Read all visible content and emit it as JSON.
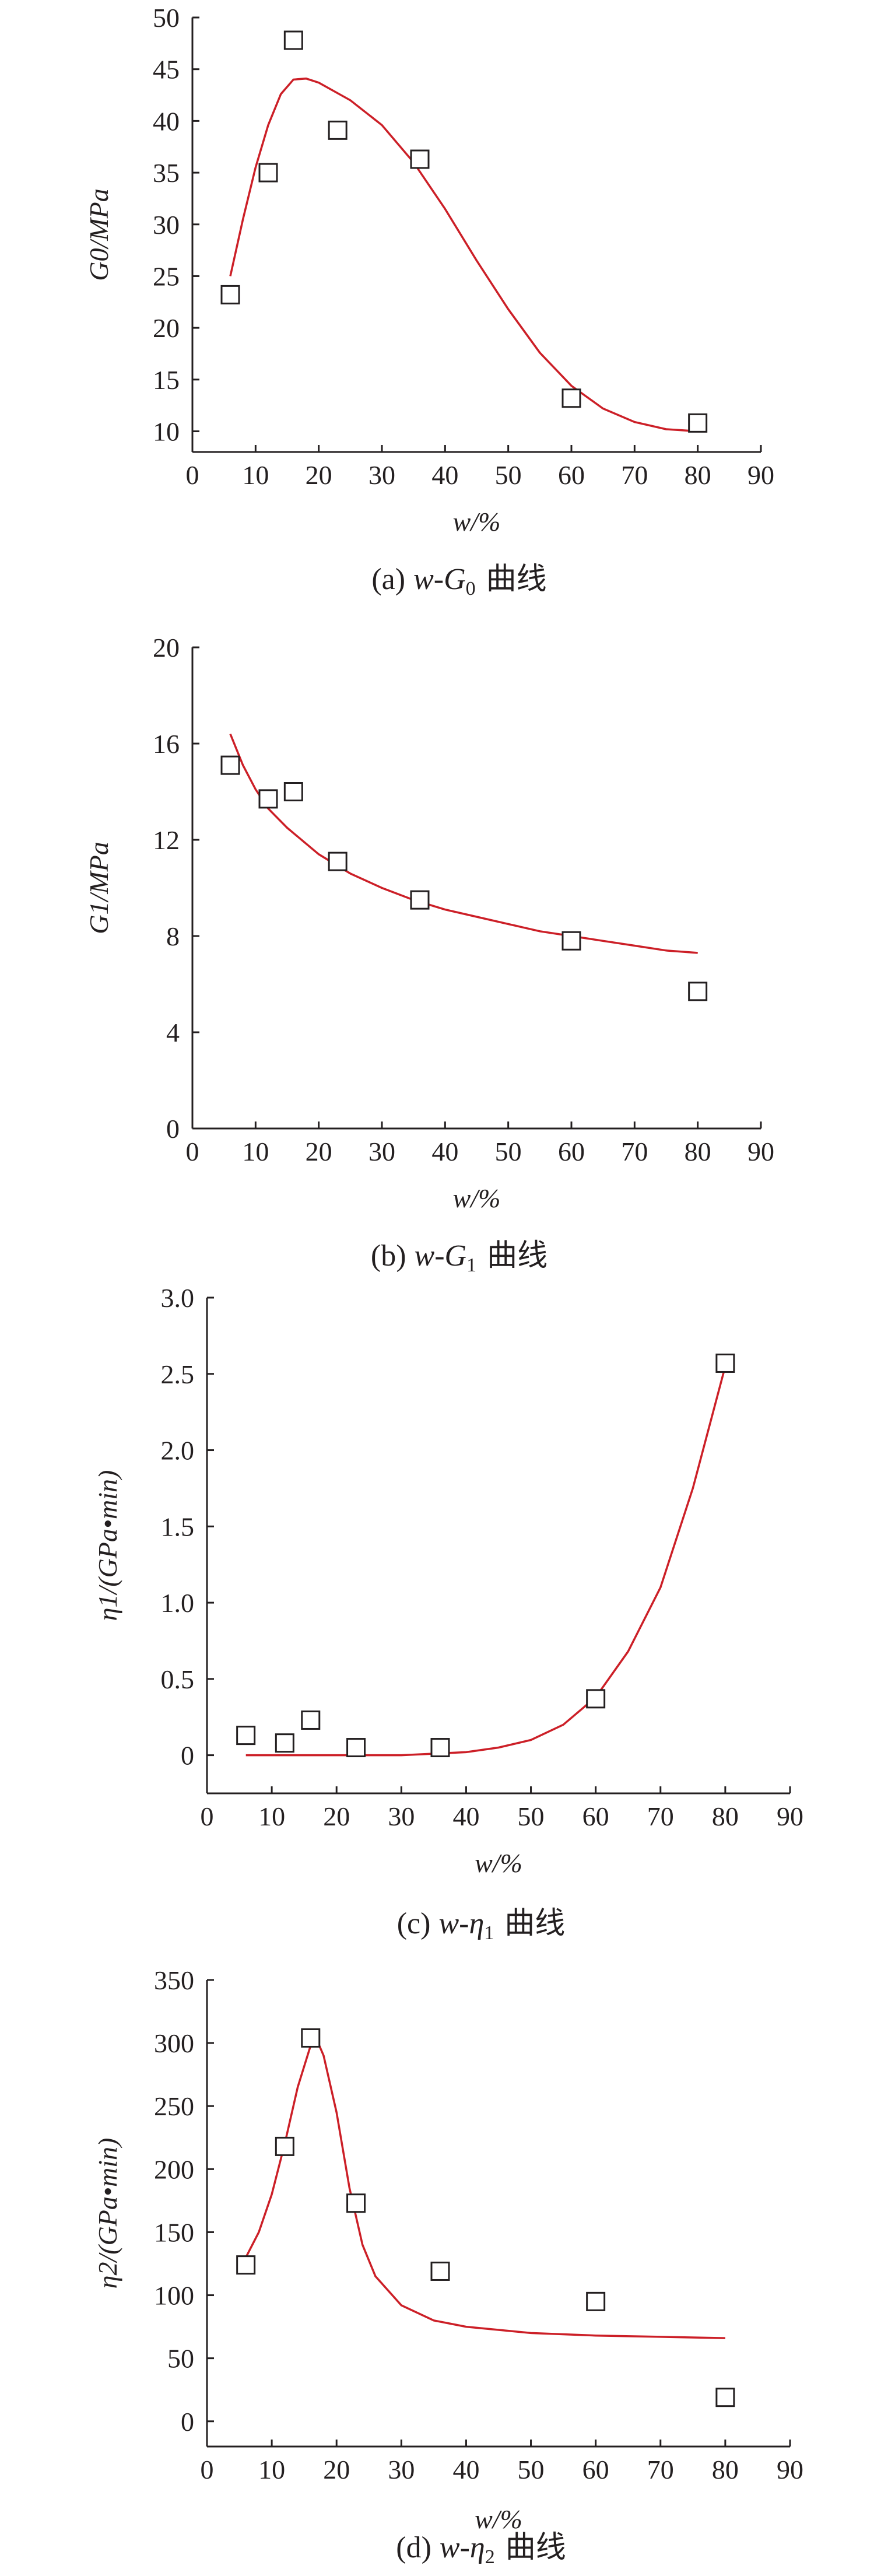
{
  "chart_data": [
    {
      "type": "scatter",
      "caption": "(a) w-G0 曲线",
      "caption_prefix": "(a)",
      "caption_var": "w-G",
      "caption_sub": "0",
      "caption_suffix": "曲线",
      "xlabel": "w/%",
      "ylabel": "G0/MPa",
      "xlim": [
        0,
        90
      ],
      "ylim": [
        8,
        50
      ],
      "xticks": [
        0,
        10,
        20,
        30,
        40,
        50,
        60,
        70,
        80,
        90
      ],
      "yticks": [
        10,
        15,
        20,
        25,
        30,
        35,
        40,
        45,
        50
      ],
      "points": [
        [
          6,
          23.2
        ],
        [
          12,
          35
        ],
        [
          16,
          47.8
        ],
        [
          23,
          39.1
        ],
        [
          36,
          36.3
        ],
        [
          60,
          13.2
        ],
        [
          80,
          10.8
        ]
      ],
      "fit_curve": [
        [
          6,
          25
        ],
        [
          8,
          30.5
        ],
        [
          10,
          35.5
        ],
        [
          12,
          39.6
        ],
        [
          14,
          42.6
        ],
        [
          16,
          44
        ],
        [
          18,
          44.1
        ],
        [
          20,
          43.7
        ],
        [
          25,
          42
        ],
        [
          30,
          39.6
        ],
        [
          35,
          36
        ],
        [
          40,
          31.5
        ],
        [
          45,
          26.5
        ],
        [
          50,
          21.8
        ],
        [
          55,
          17.6
        ],
        [
          60,
          14.4
        ],
        [
          65,
          12.2
        ],
        [
          70,
          10.9
        ],
        [
          75,
          10.2
        ],
        [
          80,
          10
        ]
      ]
    },
    {
      "type": "scatter",
      "caption": "(b) w-G1 曲线",
      "caption_prefix": "(b)",
      "caption_var": "w-G",
      "caption_sub": "1",
      "caption_suffix": "曲线",
      "xlabel": "w/%",
      "ylabel": "G1/MPa",
      "xlim": [
        0,
        90
      ],
      "ylim": [
        0,
        20
      ],
      "xticks": [
        0,
        10,
        20,
        30,
        40,
        50,
        60,
        70,
        80,
        90
      ],
      "yticks": [
        0,
        4,
        8,
        12,
        16,
        20
      ],
      "points": [
        [
          6,
          15.1
        ],
        [
          12,
          13.7
        ],
        [
          16,
          14
        ],
        [
          23,
          11.1
        ],
        [
          36,
          9.5
        ],
        [
          60,
          7.8
        ],
        [
          80,
          5.7
        ]
      ],
      "fit_curve": [
        [
          6,
          16.4
        ],
        [
          8,
          15.1
        ],
        [
          10,
          14.1
        ],
        [
          12,
          13.3
        ],
        [
          15,
          12.5
        ],
        [
          20,
          11.4
        ],
        [
          25,
          10.6
        ],
        [
          30,
          10
        ],
        [
          35,
          9.5
        ],
        [
          40,
          9.1
        ],
        [
          45,
          8.8
        ],
        [
          50,
          8.5
        ],
        [
          55,
          8.2
        ],
        [
          60,
          8
        ],
        [
          65,
          7.8
        ],
        [
          70,
          7.6
        ],
        [
          75,
          7.4
        ],
        [
          80,
          7.3
        ]
      ]
    },
    {
      "type": "scatter",
      "caption": "(c) w-η1 曲线",
      "caption_prefix": "(c)",
      "caption_var": "w-η",
      "caption_sub": "1",
      "caption_suffix": "曲线",
      "xlabel": "w/%",
      "ylabel": "η1/(GPa•min)",
      "xlim": [
        0,
        90
      ],
      "ylim": [
        -0.25,
        3.0
      ],
      "xticks": [
        0,
        10,
        20,
        30,
        40,
        50,
        60,
        70,
        80,
        90
      ],
      "yticks": [
        0,
        0.5,
        1.0,
        1.5,
        2.0,
        2.5,
        3.0
      ],
      "ytick_labels": [
        "0",
        "0.5",
        "1.0",
        "1.5",
        "2.0",
        "2.5",
        "3.0"
      ],
      "points": [
        [
          6,
          0.13
        ],
        [
          12,
          0.08
        ],
        [
          16,
          0.23
        ],
        [
          23,
          0.05
        ],
        [
          36,
          0.05
        ],
        [
          60,
          0.37
        ],
        [
          80,
          2.57
        ]
      ],
      "fit_curve": [
        [
          6,
          0
        ],
        [
          20,
          0
        ],
        [
          30,
          0
        ],
        [
          35,
          0.01
        ],
        [
          40,
          0.02
        ],
        [
          45,
          0.05
        ],
        [
          50,
          0.1
        ],
        [
          55,
          0.2
        ],
        [
          60,
          0.38
        ],
        [
          65,
          0.68
        ],
        [
          70,
          1.1
        ],
        [
          75,
          1.75
        ],
        [
          80,
          2.55
        ]
      ]
    },
    {
      "type": "scatter",
      "caption": "(d) w-η2 曲线",
      "caption_prefix": "(d)",
      "caption_var": "w-η",
      "caption_sub": "2",
      "caption_suffix": "曲线",
      "xlabel": "w/%",
      "ylabel": "η2/(GPa•min)",
      "xlim": [
        0,
        90
      ],
      "ylim": [
        -20,
        350
      ],
      "xticks": [
        0,
        10,
        20,
        30,
        40,
        50,
        60,
        70,
        80,
        90
      ],
      "yticks": [
        0,
        50,
        100,
        150,
        200,
        250,
        300,
        350
      ],
      "points": [
        [
          6,
          124
        ],
        [
          12,
          218
        ],
        [
          16,
          304
        ],
        [
          23,
          173
        ],
        [
          36,
          119
        ],
        [
          60,
          95
        ],
        [
          80,
          19
        ]
      ],
      "fit_curve": [
        [
          6,
          130
        ],
        [
          8,
          150
        ],
        [
          10,
          180
        ],
        [
          12,
          220
        ],
        [
          14,
          265
        ],
        [
          16,
          298
        ],
        [
          17,
          302
        ],
        [
          18,
          290
        ],
        [
          20,
          245
        ],
        [
          22,
          185
        ],
        [
          24,
          140
        ],
        [
          26,
          115
        ],
        [
          30,
          92
        ],
        [
          35,
          80
        ],
        [
          40,
          75
        ],
        [
          50,
          70
        ],
        [
          60,
          68
        ],
        [
          70,
          67
        ],
        [
          80,
          66
        ]
      ]
    }
  ],
  "colors": {
    "curve": "#cc1f27",
    "axis": "#231f20",
    "marker_fill": "#ffffff"
  }
}
